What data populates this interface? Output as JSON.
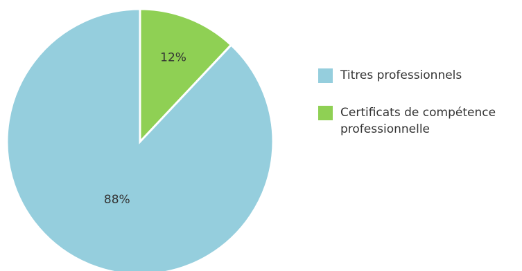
{
  "chart_data": {
    "type": "pie",
    "title": "",
    "slices": [
      {
        "name": "Certificats de compétence professionnelle",
        "value": 12,
        "label": "12%",
        "color": "#8fd054"
      },
      {
        "name": "Titres professionnels",
        "value": 88,
        "label": "88%",
        "color": "#95cedd"
      }
    ],
    "legend": {
      "placement": "right",
      "items": [
        {
          "label": "Titres professionnels",
          "color": "#95cedd"
        },
        {
          "label": "Certificats de compétence professionnelle",
          "color": "#8fd054"
        }
      ]
    }
  }
}
